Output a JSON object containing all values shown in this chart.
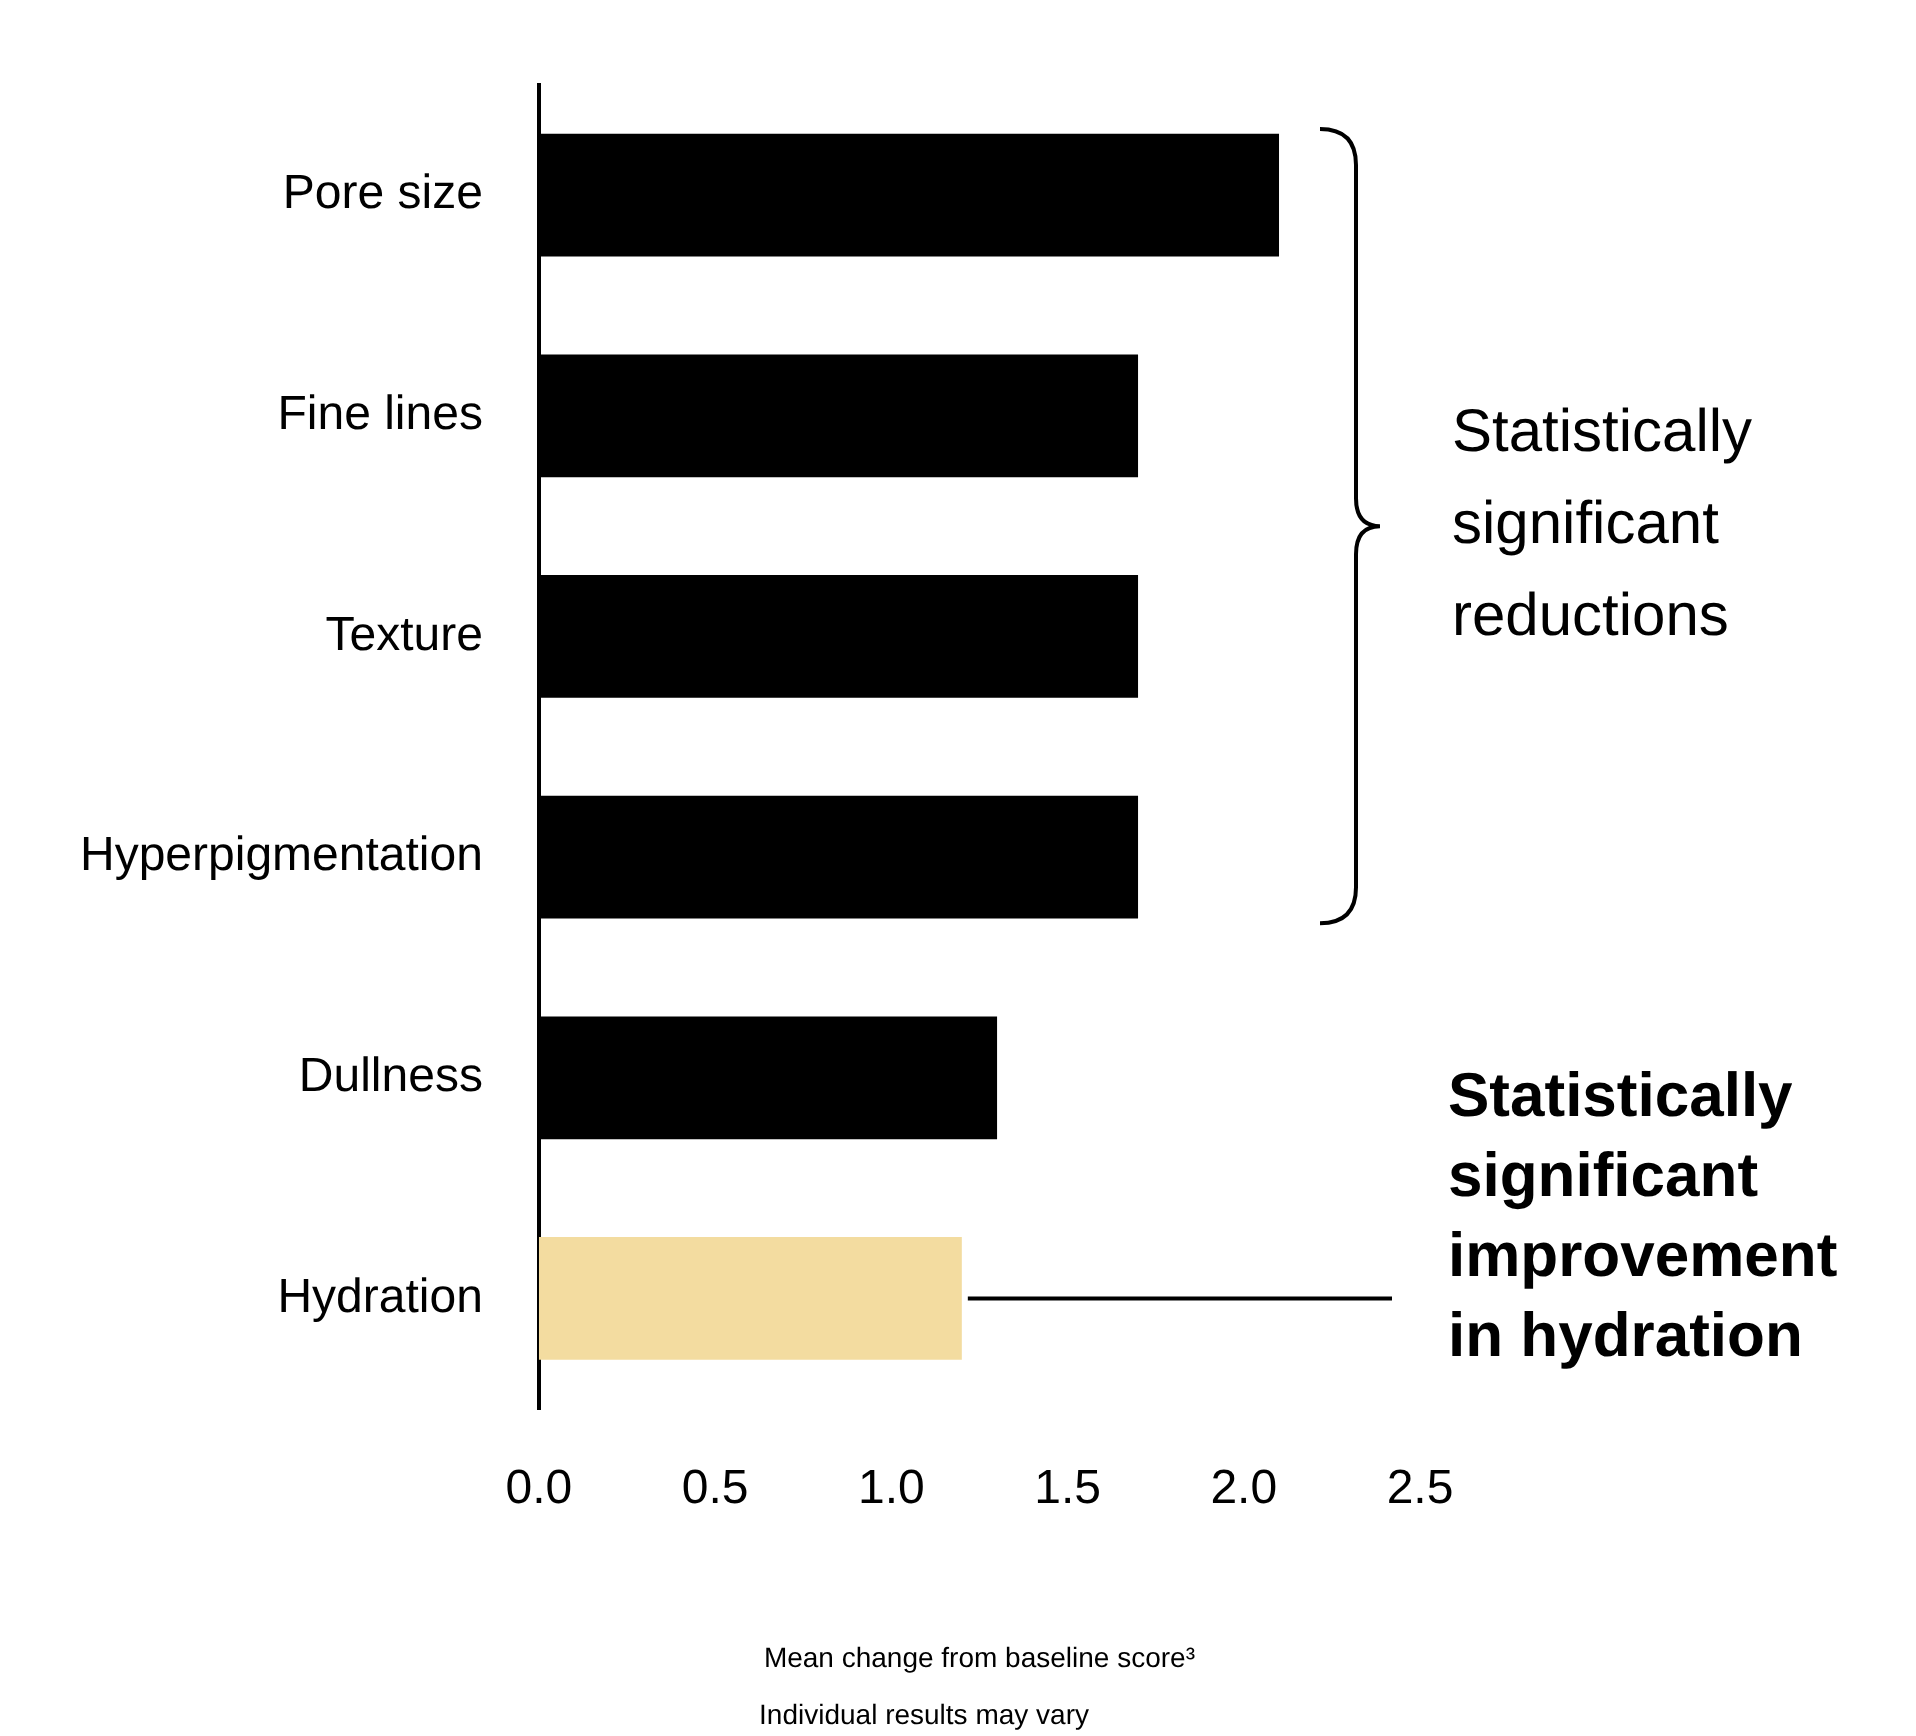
{
  "chart_data": {
    "type": "bar",
    "orientation": "horizontal",
    "categories": [
      "Pore size",
      "Fine lines",
      "Texture",
      "Hyperpigmentation",
      "Dullness",
      "Hydration"
    ],
    "values": [
      2.1,
      1.7,
      1.7,
      1.7,
      1.3,
      1.2
    ],
    "colors": [
      "#000000",
      "#000000",
      "#000000",
      "#000000",
      "#000000",
      "#f3dca0"
    ],
    "xlim": [
      0,
      2.5
    ],
    "xticks": [
      {
        "value": 0,
        "label": "0.0"
      },
      {
        "value": 0.5,
        "label": "0.5"
      },
      {
        "value": 1,
        "label": "1.0"
      },
      {
        "value": 1.5,
        "label": "1.5"
      },
      {
        "value": 2,
        "label": "2.0"
      },
      {
        "value": 2.5,
        "label": "2.5"
      }
    ],
    "xlabel": "Mean change from baseline score³",
    "grid": false,
    "legend": false,
    "annotations": [
      "Statistically significant reductions",
      {
        "text": "Statistically significant improvement in hydration",
        "x": 1.2,
        "y": "Hydration"
      },
      "Individual results may vary"
    ]
  }
}
